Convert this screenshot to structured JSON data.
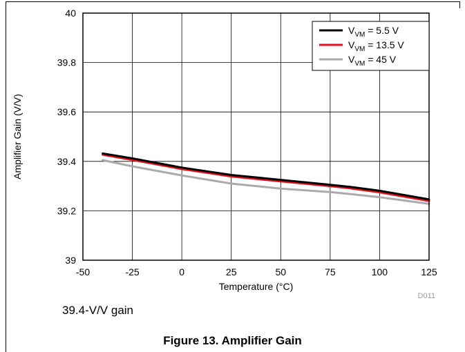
{
  "caption": "39.4-V/V gain",
  "figure_title": "Figure 13. Amplifier Gain",
  "chart_code": "D011",
  "chart_data": {
    "type": "line",
    "xlabel": "Temperature (°C)",
    "ylabel": "Amplifier Gain (V/V)",
    "xlim": [
      -50,
      125
    ],
    "ylim": [
      39,
      40
    ],
    "x_ticks": [
      -50,
      -25,
      0,
      25,
      50,
      75,
      100,
      125
    ],
    "x_tick_labels": [
      "-50",
      "-25",
      "0",
      "25",
      "50",
      "75",
      "100",
      "125"
    ],
    "y_ticks": [
      39,
      39.2,
      39.4,
      39.6,
      39.8,
      40
    ],
    "y_tick_labels": [
      "39",
      "39.2",
      "39.4",
      "39.6",
      "39.8",
      "40"
    ],
    "grid": true,
    "legend_position": "top-right",
    "series": [
      {
        "name": "V_VM = 5.5 V",
        "label_main": "V",
        "label_sub": "VM",
        "label_rest": " = 5.5 V",
        "color": "#000000",
        "x": [
          -40,
          -25,
          0,
          25,
          50,
          75,
          85,
          100,
          125
        ],
        "y": [
          39.432,
          39.412,
          39.375,
          39.345,
          39.325,
          39.305,
          39.297,
          39.281,
          39.246
        ]
      },
      {
        "name": "V_VM = 13.5 V",
        "label_main": "V",
        "label_sub": "VM",
        "label_rest": " = 13.5 V",
        "color": "#e8101a",
        "x": [
          -40,
          -25,
          0,
          25,
          50,
          75,
          85,
          100,
          125
        ],
        "y": [
          39.427,
          39.406,
          39.369,
          39.339,
          39.319,
          39.3,
          39.291,
          39.275,
          39.24
        ]
      },
      {
        "name": "V_VM = 45 V",
        "label_main": "V",
        "label_sub": "VM",
        "label_rest": " = 45 V",
        "color": "#aaaaaa",
        "x": [
          -40,
          -25,
          0,
          25,
          50,
          75,
          85,
          100,
          125
        ],
        "y": [
          39.405,
          39.38,
          39.343,
          39.31,
          39.29,
          39.276,
          39.268,
          39.255,
          39.228
        ]
      }
    ]
  }
}
